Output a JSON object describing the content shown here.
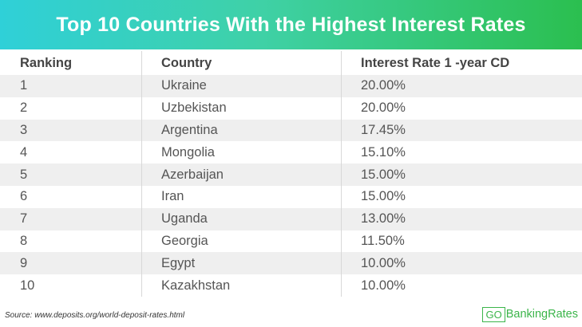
{
  "title": "Top 10 Countries With the Highest Interest Rates",
  "headers": [
    "Ranking",
    "Country",
    "Interest Rate 1 -year CD"
  ],
  "rows": [
    {
      "rank": "1",
      "country": "Ukraine",
      "rate": "20.00%"
    },
    {
      "rank": "2",
      "country": "Uzbekistan",
      "rate": "20.00%"
    },
    {
      "rank": "3",
      "country": "Argentina",
      "rate": "17.45%"
    },
    {
      "rank": "4",
      "country": "Mongolia",
      "rate": "15.10%"
    },
    {
      "rank": "5",
      "country": "Azerbaijan",
      "rate": "15.00%"
    },
    {
      "rank": "6",
      "country": "Iran",
      "rate": "15.00%"
    },
    {
      "rank": "7",
      "country": "Uganda",
      "rate": "13.00%"
    },
    {
      "rank": "8",
      "country": "Georgia",
      "rate": "11.50%"
    },
    {
      "rank": "9",
      "country": "Egypt",
      "rate": "10.00%"
    },
    {
      "rank": "10",
      "country": "Kazakhstan",
      "rate": "10.00%"
    }
  ],
  "source": "Source: www.deposits.org/world-deposit-rates.html",
  "logo": {
    "go": "GO",
    "text": "BankingRates"
  },
  "colors": {
    "banner_start": "#2fd0d8",
    "banner_end": "#2bbf4f",
    "stripe": "#efefef",
    "brand_green": "#3bb54a"
  },
  "chart_data": {
    "type": "table",
    "title": "Top 10 Countries With the Highest Interest Rates",
    "columns": [
      "Ranking",
      "Country",
      "Interest Rate 1 -year CD"
    ],
    "data": [
      [
        1,
        "Ukraine",
        20.0
      ],
      [
        2,
        "Uzbekistan",
        20.0
      ],
      [
        3,
        "Argentina",
        17.45
      ],
      [
        4,
        "Mongolia",
        15.1
      ],
      [
        5,
        "Azerbaijan",
        15.0
      ],
      [
        6,
        "Iran",
        15.0
      ],
      [
        7,
        "Uganda",
        13.0
      ],
      [
        8,
        "Georgia",
        11.5
      ],
      [
        9,
        "Egypt",
        10.0
      ],
      [
        10,
        "Kazakhstan",
        10.0
      ]
    ]
  }
}
